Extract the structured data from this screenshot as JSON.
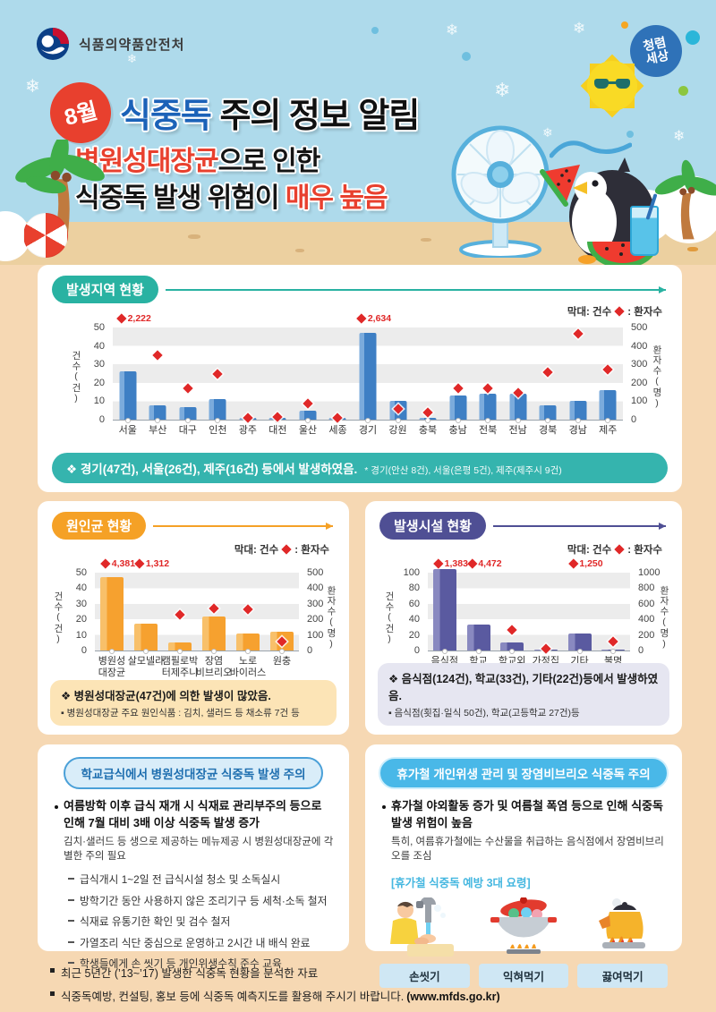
{
  "header": {
    "agency": "식품의약품안전처",
    "stamp": "청렴세상",
    "month": "8월",
    "title_blue": "식중독",
    "title_black": " 주의 정보 알림",
    "sub1_red": "병원성대장균",
    "sub1_black": "으로 인한",
    "sub2_black": "식중독 발생 위험이 ",
    "sub2_red": "매우 높음"
  },
  "colors": {
    "accent_teal": "#29b2a2",
    "accent_orange": "#f5a126",
    "accent_indigo": "#4f4f94",
    "bar_blue": "#3e7fc4",
    "bar_orange": "#f6a12f",
    "bar_indigo": "#5a5aa0",
    "diamond_red": "#e02828",
    "header_sky": "#aedaeb",
    "body_sand": "#f6d8b3",
    "title_red": "#e8402e",
    "title_blue": "#1b62b8"
  },
  "sections": {
    "region": {
      "badge": "발생지역 현황",
      "note_main": "❖ 경기(47건), 서울(26건), 제주(16건) 등에서 발생하였음.",
      "note_sub": "* 경기(안산 8건), 서울(은평 5건), 제주(제주시 9건)"
    },
    "cause": {
      "badge": "원인균 현황",
      "note_main": "❖ 병원성대장균(47건)에 의한 발생이 많았음.",
      "note_sub": "▪ 병원성대장균 주요 원인식품 : 김치, 샐러드 등 채소류 7건 등"
    },
    "facility": {
      "badge": "발생시설 현황",
      "note_main": "❖ 음식점(124건), 학교(33건), 기타(22건)등에서 발생하였음.",
      "note_sub": "▪ 음식점(횟집·일식 50건), 학교(고등학교 27건)등"
    },
    "school": {
      "badge": "학교급식에서 병원성대장균 식중독 발생 주의",
      "point_title": "여름방학 이후 급식 재개 시 식재료 관리부주의 등으로 인해 7월 대비 3배 이상 식중독 발생 증가",
      "point_sub": "김치·샐러드 등 생으로 제공하는 메뉴제공 시 병원성대장균에 각별한 주의 필요",
      "items": [
        "급식개시 1~2일 전 급식시설 청소 및 소독실시",
        "방학기간 동안 사용하지 않은 조리기구 등 세척·소독 철저",
        "식재료 유통기한 확인 및 검수 철저",
        "가열조리 식단 중심으로 운영하고 2시간 내 배식 완료",
        "학생들에게 손 씻기 등 개인위생수칙 준수 교육"
      ]
    },
    "vacation": {
      "badge": "휴가철 개인위생 관리 및 장염비브리오 식중독 주의",
      "point_title": "휴가철 야외활동 증가 및 여름철 폭염 등으로 인해 식중독 발생 위험이 높음",
      "point_sub": "특히, 여름휴가철에는 수산물을 취급하는 음식점에서 장염비브리오를 조심",
      "tips_title": "[휴가철 식중독 예방 3대 요령]",
      "tips": [
        {
          "icon": "handwashing-icon",
          "label": "손씻기"
        },
        {
          "icon": "cooking-pot-icon",
          "label": "익혀먹기"
        },
        {
          "icon": "boiling-kettle-icon",
          "label": "끓여먹기"
        }
      ]
    }
  },
  "footer": {
    "items": [
      {
        "text": "최근 5년간 (’13~’17) 발생한 식중독 현황을 분석한 자료",
        "bold": ""
      },
      {
        "text": "식중독예방, 컨설팅, 홍보 등에 식중독 예측지도를 활용해 주시기 바랍니다.",
        "bold": "(www.mfds.go.kr)"
      }
    ]
  },
  "chart_data": [
    {
      "id": "region",
      "type": "bar",
      "title": "발생지역 현황",
      "legend_bar": "막대: 건수",
      "legend_diamond": ": 환자수",
      "ylabel_left": "건수(건)",
      "ylabel_right": "환자수(명)",
      "ylim_left": [
        0,
        50
      ],
      "yticks_left": [
        0,
        10,
        20,
        30,
        40,
        50
      ],
      "ylim_right": [
        0,
        500
      ],
      "yticks_right": [
        0,
        100,
        200,
        300,
        400,
        500
      ],
      "grid": "banded",
      "legend_position": "top-right",
      "categories": [
        "서울",
        "부산",
        "대구",
        "인천",
        "광주",
        "대전",
        "울산",
        "세종",
        "경기",
        "강원",
        "충북",
        "충남",
        "전북",
        "전남",
        "경북",
        "경남",
        "제주"
      ],
      "series": [
        {
          "name": "건수",
          "type": "bar",
          "values": [
            26,
            8,
            7,
            11,
            1,
            1,
            5,
            1,
            47,
            10,
            1,
            13,
            14,
            14,
            8,
            10,
            16
          ]
        },
        {
          "name": "환자수",
          "type": "scatter",
          "values": [
            2222,
            352,
            170,
            250,
            8,
            15,
            88,
            8,
            2634,
            60,
            40,
            168,
            168,
            148,
            255,
            465,
            270
          ]
        }
      ],
      "outlier_labels": {
        "0": "2,222",
        "8": "2,634"
      }
    },
    {
      "id": "cause",
      "type": "bar",
      "title": "원인균 현황",
      "legend_bar": "막대: 건수",
      "legend_diamond": ": 환자수",
      "ylabel_left": "건수(건)",
      "ylabel_right": "환자수(명)",
      "ylim_left": [
        0,
        50
      ],
      "yticks_left": [
        0,
        10,
        20,
        30,
        40,
        50
      ],
      "ylim_right": [
        0,
        500
      ],
      "yticks_right": [
        0,
        100,
        200,
        300,
        400,
        500
      ],
      "grid": "banded",
      "legend_position": "top-right",
      "categories": [
        "병원성\n대장균",
        "살모넬라",
        "캠필로박\n터제주니",
        "장염\n비브리오",
        "노로\n바이러스",
        "원충"
      ],
      "series": [
        {
          "name": "건수",
          "type": "bar",
          "values": [
            47,
            17,
            5,
            22,
            11,
            12
          ]
        },
        {
          "name": "환자수",
          "type": "scatter",
          "values": [
            4381,
            1312,
            230,
            270,
            265,
            60
          ]
        }
      ],
      "outlier_labels": {
        "0": "4,381",
        "1": "1,312"
      }
    },
    {
      "id": "facility",
      "type": "bar",
      "title": "발생시설 현황",
      "legend_bar": "막대: 건수",
      "legend_diamond": ": 환자수",
      "ylabel_left": "건수(건)",
      "ylabel_right": "환자수(명)",
      "ylim_left": [
        0,
        100
      ],
      "yticks_left": [
        0,
        20,
        40,
        60,
        80,
        100
      ],
      "ylim_right": [
        0,
        1000
      ],
      "yticks_right": [
        0,
        200,
        400,
        600,
        800,
        1000
      ],
      "grid": "banded",
      "legend_position": "top-right",
      "categories": [
        "음식점",
        "학교",
        "학교외\n집단급식",
        "가정집",
        "기타",
        "불명"
      ],
      "series": [
        {
          "name": "건수",
          "type": "bar",
          "values": [
            124,
            33,
            10,
            1,
            22,
            1
          ]
        },
        {
          "name": "환자수",
          "type": "scatter",
          "values": [
            1383,
            4472,
            265,
            20,
            1250,
            110
          ]
        }
      ],
      "outlier_labels": {
        "0": "1,383",
        "1": "4,472",
        "4": "1,250"
      }
    }
  ]
}
